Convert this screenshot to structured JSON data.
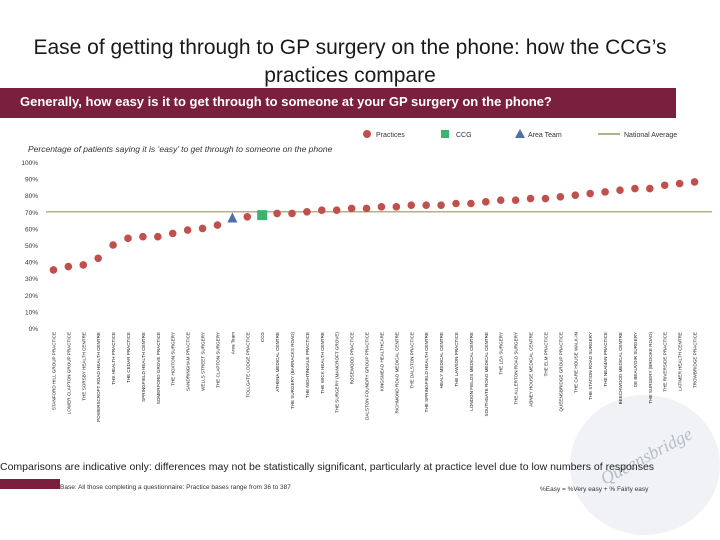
{
  "title": "Ease of getting through to GP surgery on the phone: how the CCG’s practices compare",
  "question": "Generally, how easy is it to get through to someone at your GP surgery on the phone?",
  "subtitle": "Percentage of patients saying it is ‘easy’ to get through to someone on the phone",
  "legend": {
    "practices": "Practices",
    "ccg": "CCG",
    "area_team": "Area Team",
    "national_average": "National Average"
  },
  "caveat": "Comparisons are indicative only: differences may not be statistically significant, particularly at practice level due to low numbers of responses",
  "base_note": "Base: All those completing a questionnaire: Practice bases range from 36 to 387",
  "definition": "%Easy = %Very easy + % Fairly easy",
  "watermark": "Queensbridge Group Practice",
  "colors": {
    "question_bar": "#7a1f3d",
    "practice": "#c0504d",
    "ccg": "#3cb371",
    "area_team": "#4f6fa8",
    "national_average": "#b5b08a"
  },
  "chart_data": {
    "type": "scatter",
    "ylim": [
      0,
      100
    ],
    "yticks": [
      "0%",
      "10%",
      "20%",
      "30%",
      "40%",
      "50%",
      "60%",
      "70%",
      "80%",
      "90%",
      "100%"
    ],
    "national_average": 70,
    "categories": [
      "STANFORD HILL GROUP PRACTICE",
      "LOWER CLAPTON GROUP PRACTICE",
      "THE SORSBY HEALTH CENTRE",
      "POWERSCROFT ROAD HEALTH CENTRE",
      "THE HEALTH PRACTICE",
      "THE CEDAR PRACTICE",
      "SPRINGFIELD HEALTH CENTRE",
      "SOMERFORD GROVE PRACTICE",
      "THE HOXTON SURGERY",
      "SANDRINGHAM PRACTICE",
      "WELLS STREET SURGERY",
      "THE CLAPTON SURGERY",
      "Area Team",
      "TOLLGATE LODGE PRACTICE",
      "CCG",
      "ATHENA MEDICAL CENTRE",
      "THE SURGERY (BARRACKS ROAD)",
      "THE NIGHTINGALE PRACTICE",
      "THE WICK HEALTH CENTRE",
      "THE SURGERY (MANCROFT GROVE)",
      "ROSEWOOD PRACTICE",
      "DALSTON FOUNDRY GROUP PRACTICE",
      "KINGSMEAD HEALTHCARE",
      "RICHMOND ROAD MEDICAL CENTRE",
      "THE DALSTON PRACTICE",
      "THE SPRINGFIELD HEALTH CENTRE",
      "HEALY MEDICAL CENTRE",
      "THE LAWSON PRACTICE",
      "LONDON FIELDS MEDICAL CENTRE",
      "SOUTHGATE ROAD MEDICAL CENTRE",
      "THE LEA SURGERY",
      "THE ALLERTON ROAD SURGERY",
      "ABNEY HOUSE MEDICAL CENTRE",
      "THE ELM PRACTICE",
      "QUEENSBRIDGE GROUP PRACTICE",
      "THE CARE HOUSE WALK-IN",
      "THE STATION ROAD SURGERY",
      "THE NEAMAN PRACTICE",
      "BEECHWOOD MEDICAL CENTRE",
      "DE BEAUVOIR SURGERY",
      "THE SURGERY (BROOKE ROAD)",
      "THE RIVERSIDE PRACTICE",
      "LATIMER HEALTH CENTRE",
      "TROWBRIDGE PRACTICE"
    ],
    "values": [
      35,
      37,
      38,
      42,
      50,
      54,
      55,
      55,
      57,
      59,
      60,
      62,
      66,
      67,
      68,
      69,
      69,
      70,
      71,
      71,
      72,
      72,
      73,
      73,
      74,
      74,
      74,
      75,
      75,
      76,
      77,
      77,
      78,
      78,
      79,
      80,
      81,
      82,
      83,
      84,
      84,
      86,
      87,
      88
    ],
    "kinds": [
      "p",
      "p",
      "p",
      "p",
      "p",
      "p",
      "p",
      "p",
      "p",
      "p",
      "p",
      "p",
      "a",
      "p",
      "c",
      "p",
      "p",
      "p",
      "p",
      "p",
      "p",
      "p",
      "p",
      "p",
      "p",
      "p",
      "p",
      "p",
      "p",
      "p",
      "p",
      "p",
      "p",
      "p",
      "p",
      "p",
      "p",
      "p",
      "p",
      "p",
      "p",
      "p",
      "p",
      "p"
    ]
  }
}
